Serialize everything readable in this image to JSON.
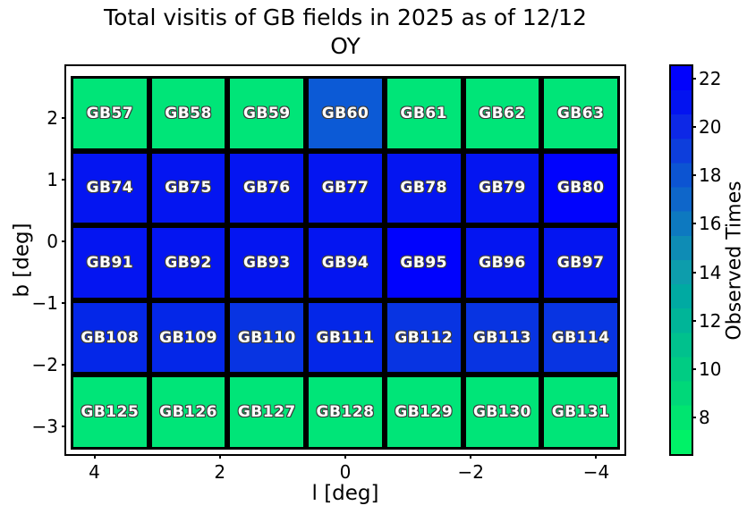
{
  "title": {
    "line1": "Total visitis of GB fields in 2025 as of 12/12",
    "line2": "OY"
  },
  "axes": {
    "xlabel": "l [deg]",
    "ylabel": "b [deg]",
    "x_left": 4.45,
    "x_right": -4.45,
    "y_top": 2.84,
    "y_bottom": -3.45,
    "x_ticks": [
      4,
      2,
      0,
      -2,
      -4
    ],
    "y_ticks": [
      2,
      1,
      0,
      -1,
      -2,
      -3
    ]
  },
  "colorbar": {
    "label": "Observed Times",
    "tick_values": [
      22,
      20,
      18,
      16,
      14,
      12,
      10,
      8
    ],
    "top_value": 22.5,
    "bottom_value": 6.5,
    "bands_top_to_bottom": [
      "#0202FC",
      "#0313F0",
      "#0D28E6",
      "#0D3EDC",
      "#0C54D2",
      "#0E66CA",
      "#0D79C0",
      "#0E8CB5",
      "#0D9DAC",
      "#00AAA2",
      "#00B598",
      "#00C18D",
      "#00CC83",
      "#00D879",
      "#00E570",
      "#00F267"
    ],
    "value_colors": {
      "8": "#00E578",
      "18": "#0C5AD6",
      "19": "#0834E2",
      "20": "#0427E8",
      "21": "#0415F1",
      "22": "#0103FD"
    }
  },
  "chart_data": {
    "type": "heatmap",
    "title": "Total visitis of GB fields in 2025 as of 12/12 OY",
    "xlabel": "l [deg]",
    "ylabel": "b [deg]",
    "colorbar_label": "Observed Times",
    "colormap": "winter_r (low=green, high=blue)",
    "colorbar_ticks": [
      8,
      10,
      12,
      14,
      16,
      18,
      20,
      22
    ],
    "x_axis_reversed": true,
    "x_tick_values": [
      4,
      2,
      0,
      -2,
      -4
    ],
    "y_tick_values": [
      2,
      1,
      0,
      -1,
      -2,
      -3
    ],
    "l_centers": [
      3.73,
      2.49,
      1.24,
      0,
      -1.24,
      -2.49,
      -3.73
    ],
    "rows": [
      {
        "b_center": 2.05,
        "fields": [
          "GB57",
          "GB58",
          "GB59",
          "GB60",
          "GB61",
          "GB62",
          "GB63"
        ],
        "values": [
          8,
          8,
          8,
          18,
          8,
          8,
          8
        ]
      },
      {
        "b_center": 0.85,
        "fields": [
          "GB74",
          "GB75",
          "GB76",
          "GB77",
          "GB78",
          "GB79",
          "GB80"
        ],
        "values": [
          21,
          21,
          21,
          21,
          21,
          21,
          22
        ]
      },
      {
        "b_center": -0.35,
        "fields": [
          "GB91",
          "GB92",
          "GB93",
          "GB94",
          "GB95",
          "GB96",
          "GB97"
        ],
        "values": [
          21,
          21,
          21,
          21,
          22,
          21,
          21
        ]
      },
      {
        "b_center": -1.55,
        "fields": [
          "GB108",
          "GB109",
          "GB110",
          "GB111",
          "GB112",
          "GB113",
          "GB114"
        ],
        "values": [
          20,
          20,
          19,
          20,
          19,
          19,
          19
        ]
      },
      {
        "b_center": -2.75,
        "fields": [
          "GB125",
          "GB126",
          "GB127",
          "GB128",
          "GB129",
          "GB130",
          "GB131"
        ],
        "values": [
          8,
          8,
          8,
          8,
          8,
          8,
          8
        ]
      }
    ]
  }
}
